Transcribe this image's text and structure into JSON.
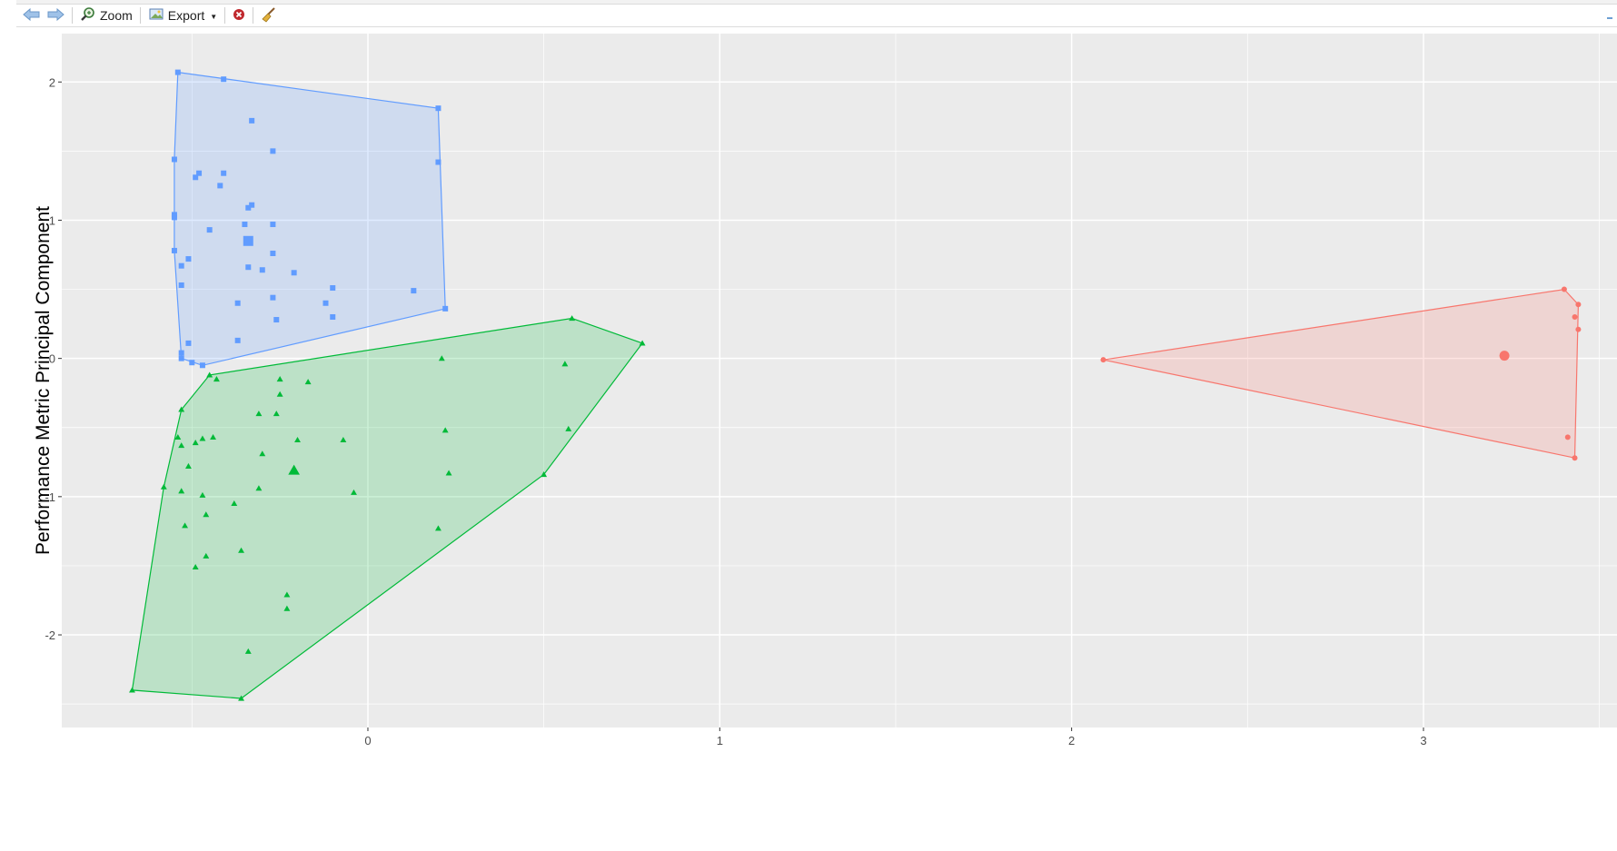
{
  "toolbar": {
    "back_icon": "arrow-left-icon",
    "forward_icon": "arrow-right-icon",
    "zoom_label": "Zoom",
    "zoom_icon": "magnifier-icon",
    "export_label": "Export",
    "export_icon": "export-image-icon",
    "remove_icon": "close-circle-icon",
    "clear_icon": "broom-icon"
  },
  "colors": {
    "panel": "#EBEBEB",
    "grid": "#FFFFFF",
    "blue": "#619CFF",
    "green": "#00BA38",
    "red": "#F8766D",
    "axis_text": "#4D4D4D"
  },
  "chart_data": {
    "type": "scatter",
    "ylabel": "Performance Metric Principal Component",
    "xlabel": "",
    "xlim": [
      -0.87,
      3.55
    ],
    "ylim": [
      -2.67,
      2.35
    ],
    "x_ticks": [
      0,
      1,
      2,
      3
    ],
    "y_ticks": [
      -2,
      -1,
      0,
      1,
      2
    ],
    "grid": true,
    "legend": "none",
    "series": [
      {
        "marker": "square",
        "color": "#619CFF",
        "centroid": [
          -0.34,
          0.85
        ],
        "hull": [
          [
            -0.54,
            2.07
          ],
          [
            0.2,
            1.81
          ],
          [
            0.22,
            0.36
          ],
          [
            -0.47,
            -0.05
          ],
          [
            -0.53,
            0.0
          ],
          [
            -0.55,
            0.78
          ],
          [
            -0.55,
            1.44
          ]
        ],
        "points": [
          [
            -0.54,
            2.07
          ],
          [
            -0.41,
            2.02
          ],
          [
            0.2,
            1.81
          ],
          [
            -0.33,
            1.72
          ],
          [
            -0.27,
            1.5
          ],
          [
            -0.55,
            1.44
          ],
          [
            0.2,
            1.42
          ],
          [
            -0.48,
            1.34
          ],
          [
            -0.41,
            1.34
          ],
          [
            -0.49,
            1.31
          ],
          [
            -0.42,
            1.25
          ],
          [
            -0.33,
            1.11
          ],
          [
            -0.34,
            1.09
          ],
          [
            -0.55,
            1.04
          ],
          [
            -0.55,
            1.02
          ],
          [
            -0.35,
            0.97
          ],
          [
            -0.27,
            0.97
          ],
          [
            -0.45,
            0.93
          ],
          [
            -0.55,
            0.78
          ],
          [
            -0.27,
            0.76
          ],
          [
            -0.51,
            0.72
          ],
          [
            -0.53,
            0.67
          ],
          [
            -0.34,
            0.66
          ],
          [
            -0.3,
            0.64
          ],
          [
            -0.21,
            0.62
          ],
          [
            -0.53,
            0.53
          ],
          [
            -0.1,
            0.51
          ],
          [
            0.13,
            0.49
          ],
          [
            -0.27,
            0.44
          ],
          [
            -0.37,
            0.4
          ],
          [
            -0.12,
            0.4
          ],
          [
            0.22,
            0.36
          ],
          [
            -0.1,
            0.3
          ],
          [
            -0.26,
            0.28
          ],
          [
            -0.37,
            0.13
          ],
          [
            -0.51,
            0.11
          ],
          [
            -0.53,
            0.04
          ],
          [
            -0.53,
            0.0
          ],
          [
            -0.5,
            -0.03
          ],
          [
            -0.47,
            -0.05
          ]
        ]
      },
      {
        "marker": "triangle",
        "color": "#00BA38",
        "centroid": [
          -0.21,
          -0.81
        ],
        "hull": [
          [
            0.58,
            0.29
          ],
          [
            0.78,
            0.11
          ],
          [
            0.5,
            -0.84
          ],
          [
            -0.36,
            -2.46
          ],
          [
            -0.67,
            -2.4
          ],
          [
            -0.58,
            -0.93
          ],
          [
            -0.53,
            -0.37
          ],
          [
            -0.45,
            -0.12
          ]
        ],
        "points": [
          [
            0.58,
            0.29
          ],
          [
            0.78,
            0.11
          ],
          [
            0.21,
            0.0
          ],
          [
            0.56,
            -0.04
          ],
          [
            -0.45,
            -0.12
          ],
          [
            -0.43,
            -0.15
          ],
          [
            -0.25,
            -0.15
          ],
          [
            -0.17,
            -0.17
          ],
          [
            -0.25,
            -0.26
          ],
          [
            -0.53,
            -0.37
          ],
          [
            -0.31,
            -0.4
          ],
          [
            -0.26,
            -0.4
          ],
          [
            0.22,
            -0.52
          ],
          [
            0.57,
            -0.51
          ],
          [
            -0.54,
            -0.57
          ],
          [
            -0.47,
            -0.58
          ],
          [
            -0.44,
            -0.57
          ],
          [
            -0.53,
            -0.63
          ],
          [
            -0.49,
            -0.61
          ],
          [
            -0.2,
            -0.59
          ],
          [
            -0.07,
            -0.59
          ],
          [
            -0.3,
            -0.69
          ],
          [
            -0.51,
            -0.78
          ],
          [
            0.23,
            -0.83
          ],
          [
            0.5,
            -0.84
          ],
          [
            -0.58,
            -0.93
          ],
          [
            -0.31,
            -0.94
          ],
          [
            -0.53,
            -0.96
          ],
          [
            -0.47,
            -0.99
          ],
          [
            -0.04,
            -0.97
          ],
          [
            -0.38,
            -1.05
          ],
          [
            -0.46,
            -1.13
          ],
          [
            -0.52,
            -1.21
          ],
          [
            0.2,
            -1.23
          ],
          [
            -0.36,
            -1.39
          ],
          [
            -0.46,
            -1.43
          ],
          [
            -0.49,
            -1.51
          ],
          [
            -0.23,
            -1.71
          ],
          [
            -0.23,
            -1.81
          ],
          [
            -0.34,
            -2.12
          ],
          [
            -0.67,
            -2.4
          ],
          [
            -0.36,
            -2.46
          ]
        ]
      },
      {
        "marker": "circle",
        "color": "#F8766D",
        "centroid": [
          3.23,
          0.02
        ],
        "hull": [
          [
            2.09,
            -0.01
          ],
          [
            3.4,
            0.5
          ],
          [
            3.44,
            0.39
          ],
          [
            3.43,
            -0.72
          ]
        ],
        "points": [
          [
            2.09,
            -0.01
          ],
          [
            3.4,
            0.5
          ],
          [
            3.44,
            0.39
          ],
          [
            3.43,
            0.3
          ],
          [
            3.44,
            0.21
          ],
          [
            3.41,
            -0.57
          ],
          [
            3.43,
            -0.72
          ]
        ]
      }
    ]
  }
}
